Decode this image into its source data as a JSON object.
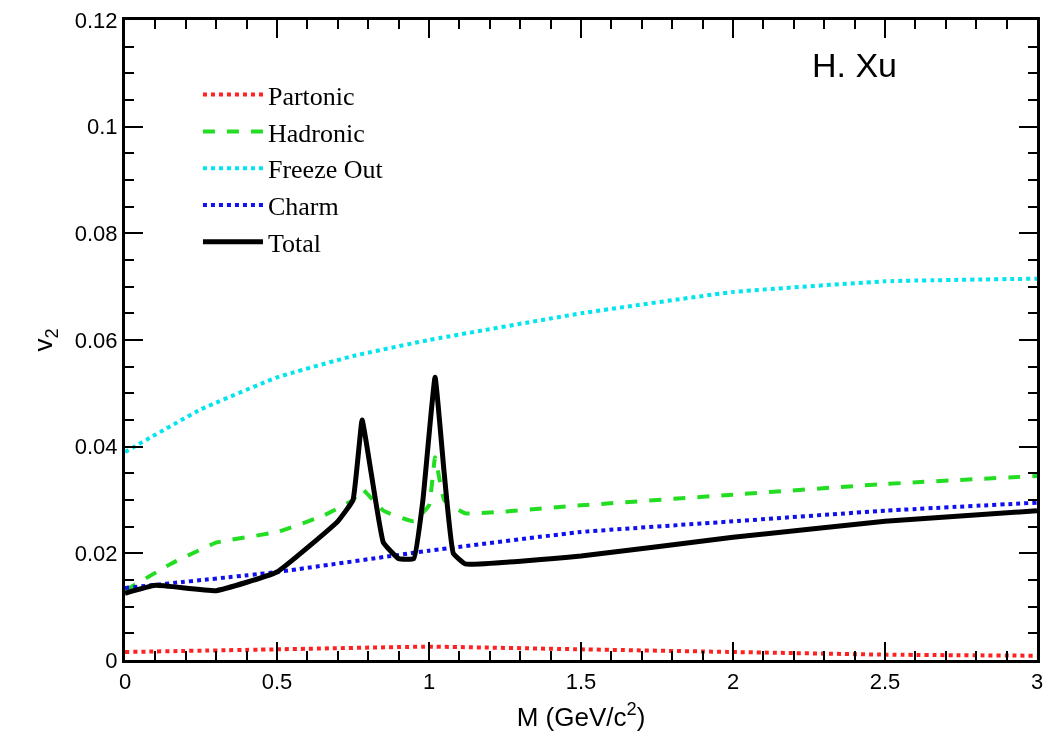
{
  "chart_data": {
    "type": "line",
    "xlabel": "M (GeV/c$^{2}$)",
    "ylabel": "v$_{2}$",
    "annotations": [
      "H. Xu"
    ],
    "xlim": [
      0,
      3
    ],
    "xticks": [
      0,
      0.5,
      1,
      1.5,
      2,
      2.5,
      3
    ],
    "ylim": [
      0,
      0.12
    ],
    "yticks": [
      0,
      0.02,
      0.04,
      0.06,
      0.08,
      0.1,
      0.12
    ],
    "legend": "top left",
    "marker": "none",
    "series": [
      {
        "name": "Partonic",
        "color": "#ff2020",
        "line_style": "dotted",
        "x": [
          0,
          0.5,
          1,
          1.5,
          2,
          2.5,
          3
        ],
        "values": [
          0.0015,
          0.002,
          0.0025,
          0.002,
          0.0015,
          0.001,
          0.0008
        ]
      },
      {
        "name": "Hadronic",
        "color": "#22dd22",
        "line_style": "dashed",
        "x": [
          0,
          0.15,
          0.3,
          0.5,
          0.65,
          0.75,
          0.78,
          0.85,
          0.95,
          1.0,
          1.02,
          1.05,
          1.12,
          1.5,
          2,
          2.5,
          3
        ],
        "values": [
          0.013,
          0.018,
          0.022,
          0.024,
          0.027,
          0.03,
          0.032,
          0.028,
          0.026,
          0.029,
          0.038,
          0.03,
          0.0275,
          0.029,
          0.031,
          0.033,
          0.0345
        ]
      },
      {
        "name": "Freeze Out",
        "color": "#00e5ee",
        "line_style": "dotted",
        "x": [
          0,
          0.25,
          0.5,
          0.75,
          1,
          1.5,
          2,
          2.5,
          3
        ],
        "values": [
          0.039,
          0.047,
          0.053,
          0.057,
          0.06,
          0.065,
          0.069,
          0.071,
          0.0715
        ]
      },
      {
        "name": "Charm",
        "color": "#1010ee",
        "line_style": "dotted",
        "x": [
          0,
          0.5,
          1,
          1.5,
          2,
          2.5,
          3
        ],
        "values": [
          0.0135,
          0.0165,
          0.0205,
          0.024,
          0.026,
          0.028,
          0.0295
        ]
      },
      {
        "name": "Total",
        "color": "#000000",
        "line_style": "solid",
        "x": [
          0,
          0.1,
          0.3,
          0.5,
          0.7,
          0.75,
          0.78,
          0.81,
          0.85,
          0.9,
          0.95,
          0.98,
          1.02,
          1.05,
          1.08,
          1.12,
          1.5,
          2,
          2.5,
          3
        ],
        "values": [
          0.0125,
          0.014,
          0.013,
          0.0165,
          0.026,
          0.03,
          0.045,
          0.035,
          0.022,
          0.019,
          0.019,
          0.03,
          0.053,
          0.035,
          0.02,
          0.018,
          0.0195,
          0.023,
          0.026,
          0.028
        ]
      }
    ]
  }
}
